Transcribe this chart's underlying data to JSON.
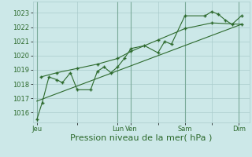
{
  "bg_color": "#cce8e8",
  "grid_color": "#aacccc",
  "line_color": "#2d6a2d",
  "marker_color": "#2d6a2d",
  "ylabel_values": [
    1016,
    1017,
    1018,
    1019,
    1020,
    1021,
    1022,
    1023
  ],
  "xlabel": "Pression niveau de la mer( hPa )",
  "xtick_labels": [
    "Jeu",
    "",
    "Lun",
    "Ven",
    "",
    "Sam",
    "",
    "Dim"
  ],
  "xtick_positions": [
    0,
    3,
    6,
    7,
    9,
    11,
    13,
    15
  ],
  "ylim": [
    1015.3,
    1023.8
  ],
  "xlim": [
    -0.3,
    15.8
  ],
  "line1_x": [
    0,
    0.4,
    0.9,
    1.5,
    1.9,
    2.5,
    3.0,
    4.0,
    4.5,
    5.0,
    5.5,
    6.0,
    6.5,
    7.0,
    8.0,
    9.0,
    9.5,
    10.0,
    11.0,
    12.5,
    13.0,
    13.5,
    14.0,
    14.5,
    15.2
  ],
  "line1_y": [
    1015.5,
    1016.7,
    1018.5,
    1018.3,
    1018.1,
    1018.8,
    1017.6,
    1017.6,
    1018.9,
    1019.2,
    1018.8,
    1019.2,
    1019.8,
    1020.5,
    1020.7,
    1020.2,
    1021.0,
    1020.8,
    1022.8,
    1022.8,
    1023.1,
    1022.9,
    1022.5,
    1022.2,
    1022.8
  ],
  "line2_x": [
    0.3,
    1.5,
    3.0,
    4.5,
    6.0,
    7.0,
    9.0,
    11.0,
    13.0,
    15.2
  ],
  "line2_y": [
    1018.5,
    1018.8,
    1019.1,
    1019.4,
    1019.8,
    1020.3,
    1021.1,
    1021.9,
    1022.3,
    1022.2
  ],
  "line3_x": [
    0,
    15.2
  ],
  "line3_y": [
    1016.8,
    1022.2
  ],
  "font_color": "#2d6a2d",
  "tick_fontsize": 6.0,
  "xlabel_fontsize": 8.0,
  "vlines": [
    0,
    6,
    7,
    11,
    15
  ]
}
